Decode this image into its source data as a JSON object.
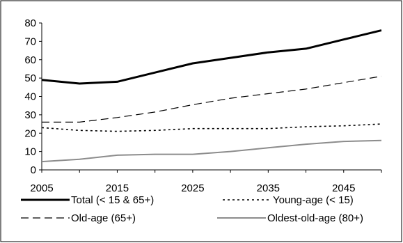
{
  "chart_data": {
    "type": "line",
    "title": "",
    "xlabel": "",
    "ylabel": "",
    "xlim": [
      2005,
      2050
    ],
    "ylim": [
      0,
      80
    ],
    "x_ticks": [
      2005,
      2015,
      2025,
      2035,
      2045
    ],
    "y_ticks": [
      0,
      10,
      20,
      30,
      40,
      50,
      60,
      70,
      80
    ],
    "grid": false,
    "legend_position": "bottom",
    "x": [
      2005,
      2010,
      2015,
      2020,
      2025,
      2030,
      2035,
      2040,
      2045,
      2050
    ],
    "series": [
      {
        "name": "Total (< 15 & 65+)",
        "style": "solid-thick",
        "color": "#000000",
        "values": [
          49,
          47,
          48,
          53,
          58,
          61,
          64,
          66,
          71,
          76
        ]
      },
      {
        "name": "Young-age (< 15)",
        "style": "dotted",
        "color": "#000000",
        "values": [
          23,
          21.5,
          21,
          21.5,
          22.5,
          22.5,
          22.5,
          23.5,
          24,
          25
        ]
      },
      {
        "name": "Old-age (65+)",
        "style": "dashed",
        "color": "#000000",
        "values": [
          26,
          26,
          28.5,
          31.5,
          35.5,
          39,
          41.5,
          44,
          47.5,
          51
        ]
      },
      {
        "name": "Oldest-old-age (80+)",
        "style": "solid-gray",
        "color": "#8c8c8c",
        "values": [
          4.5,
          5.8,
          8,
          8.5,
          8.5,
          10,
          12,
          14,
          15.5,
          16
        ]
      }
    ]
  }
}
